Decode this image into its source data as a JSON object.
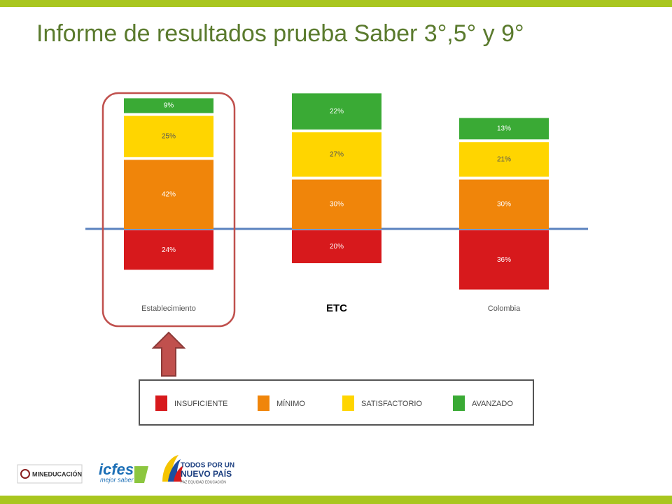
{
  "title": "Informe de resultados prueba Saber 3°,5° y 9°",
  "chart_data": {
    "type": "diverging-stacked-bar",
    "categories": [
      "Establecimiento",
      "ETC",
      "Colombia"
    ],
    "series": [
      {
        "name": "INSUFICIENTE",
        "color": "#d7191c",
        "values": [
          24,
          20,
          36
        ],
        "value_labels": [
          "24%",
          "20%",
          "36%"
        ]
      },
      {
        "name": "MÍNIMO",
        "color": "#f0850a",
        "values": [
          42,
          30,
          30
        ],
        "value_labels": [
          "42%",
          "30%",
          "30%"
        ]
      },
      {
        "name": "SATISFACTORIO",
        "color": "#ffd500",
        "values": [
          25,
          27,
          21
        ],
        "value_labels": [
          "25%",
          "27%",
          "21%"
        ]
      },
      {
        "name": "AVANZADO",
        "color": "#3aaa35",
        "values": [
          9,
          22,
          13
        ],
        "value_labels": [
          "9%",
          "22%",
          "13%"
        ]
      }
    ]
  },
  "logos": {
    "mineducacion": "MINEDUCACIÓN",
    "icfes": "icfes",
    "icfes_tagline": "mejor saber",
    "todos": "TODOS POR UN",
    "nuevo_pais": "NUEVO PAÍS",
    "pais_tagline": "PAZ  EQUIDAD  EDUCACIÓN"
  }
}
